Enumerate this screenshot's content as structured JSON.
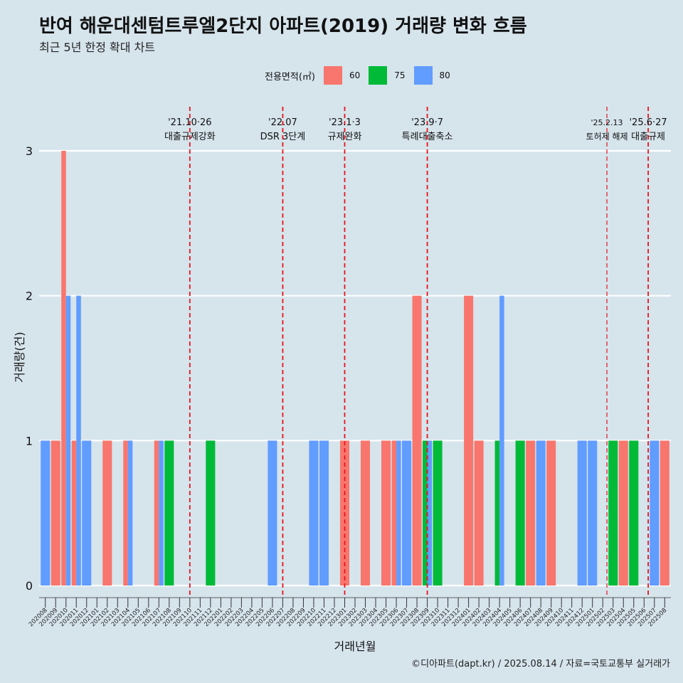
{
  "title": "반여 해운대센텀트루엘2단지 아파트(2019) 거래량 변화 흐름",
  "subtitle": "최근 5년 한정 확대 차트",
  "caption": "©디아파트(dapt.kr) / 2025.08.14 / 자료=국토교통부 실거래가",
  "legend": {
    "title": "전용면적(㎡)",
    "items": [
      {
        "label": "60",
        "color": "#f8766d"
      },
      {
        "label": "75",
        "color": "#00ba38"
      },
      {
        "label": "80",
        "color": "#619cff"
      }
    ]
  },
  "chart_data": {
    "type": "bar",
    "xlabel": "거래년월",
    "ylabel": "거래량(건)",
    "ylim": [
      0,
      3
    ],
    "yticks": [
      0,
      1,
      2,
      3
    ],
    "grid": true,
    "legend_position": "top",
    "categories": [
      "202008",
      "202009",
      "202010",
      "202011",
      "202012",
      "202101",
      "202102",
      "202103",
      "202104",
      "202105",
      "202106",
      "202107",
      "202108",
      "202109",
      "202110",
      "202111",
      "202112",
      "202201",
      "202202",
      "202203",
      "202204",
      "202205",
      "202206",
      "202207",
      "202208",
      "202209",
      "202210",
      "202211",
      "202212",
      "202301",
      "202302",
      "202303",
      "202304",
      "202305",
      "202306",
      "202307",
      "202308",
      "202309",
      "202310",
      "202311",
      "202312",
      "202401",
      "202402",
      "202403",
      "202404",
      "202405",
      "202406",
      "202407",
      "202408",
      "202409",
      "202410",
      "202411",
      "202412",
      "202501",
      "202502",
      "202503",
      "202504",
      "202505",
      "202506",
      "202507",
      "202508"
    ],
    "series": [
      {
        "name": "60",
        "color": "#f8766d",
        "values": [
          0,
          1,
          3,
          1,
          0,
          0,
          1,
          0,
          1,
          0,
          0,
          1,
          0,
          0,
          0,
          0,
          0,
          0,
          0,
          0,
          0,
          0,
          0,
          0,
          0,
          0,
          0,
          0,
          0,
          1,
          0,
          1,
          0,
          1,
          1,
          0,
          2,
          0,
          0,
          0,
          0,
          2,
          1,
          0,
          0,
          0,
          0,
          1,
          0,
          1,
          0,
          0,
          0,
          0,
          0,
          0,
          1,
          0,
          0,
          0,
          1
        ]
      },
      {
        "name": "75",
        "color": "#00ba38",
        "values": [
          0,
          0,
          0,
          0,
          0,
          0,
          0,
          0,
          0,
          0,
          0,
          0,
          1,
          0,
          0,
          0,
          1,
          0,
          0,
          0,
          0,
          0,
          0,
          0,
          0,
          0,
          0,
          0,
          0,
          0,
          0,
          0,
          0,
          0,
          0,
          0,
          0,
          1,
          1,
          0,
          0,
          0,
          0,
          0,
          1,
          0,
          1,
          0,
          0,
          0,
          0,
          0,
          0,
          0,
          0,
          1,
          0,
          1,
          0,
          0,
          0
        ]
      },
      {
        "name": "80",
        "color": "#619cff",
        "values": [
          1,
          0,
          2,
          2,
          1,
          0,
          0,
          0,
          1,
          0,
          0,
          1,
          0,
          0,
          0,
          0,
          0,
          0,
          0,
          0,
          0,
          0,
          1,
          0,
          0,
          0,
          1,
          1,
          0,
          0,
          0,
          0,
          0,
          0,
          1,
          1,
          0,
          1,
          0,
          0,
          0,
          0,
          0,
          0,
          2,
          0,
          0,
          0,
          1,
          0,
          0,
          0,
          1,
          1,
          0,
          0,
          0,
          0,
          0,
          1,
          0
        ]
      }
    ],
    "annotations": [
      {
        "x_position": 14.0,
        "label1": "'21.10·26",
        "label2": "대출규제강화"
      },
      {
        "x_position": 23.0,
        "label1": "'22.07",
        "label2": "DSR 3단계"
      },
      {
        "x_position": 29.0,
        "label1": "'23.1·3",
        "label2": "규제완화"
      },
      {
        "x_position": 37.0,
        "label1": "'23.9·7",
        "label2": "특례대출축소"
      },
      {
        "x_position": 54.4,
        "label1": "'25.2.13",
        "label2": "토허제 해제"
      },
      {
        "x_position": 58.4,
        "label1": "'25.6·27",
        "label2": "대출규제"
      }
    ]
  }
}
